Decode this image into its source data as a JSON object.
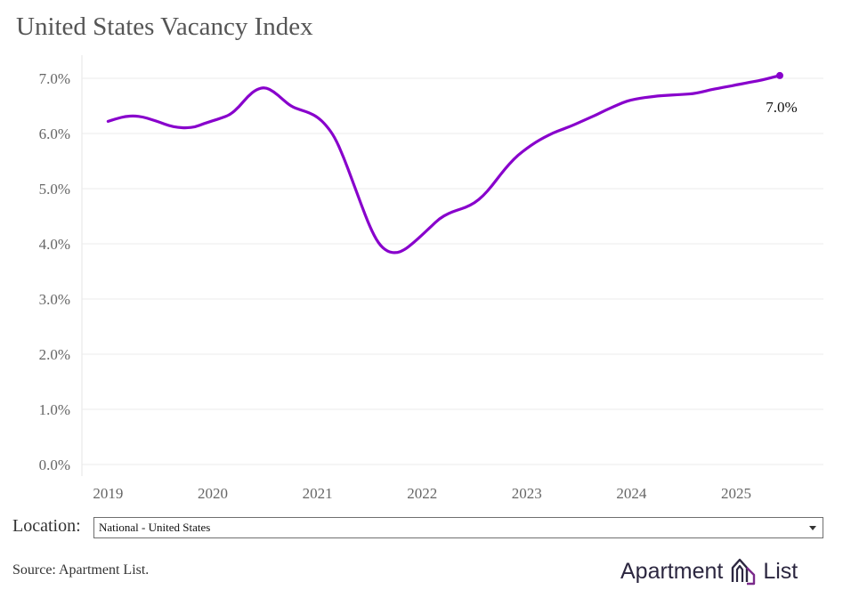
{
  "title": "United States Vacancy Index",
  "location": {
    "label": "Location:",
    "selected": "National - United States"
  },
  "source": "Source: Apartment List.",
  "logo": {
    "word1": "Apartment",
    "word2": "List"
  },
  "colors": {
    "line": "#8800cc",
    "gridline": "#ebebeb",
    "logo_accent": "#7a2a8a"
  },
  "chart_data": {
    "type": "line",
    "title": "United States Vacancy Index",
    "xlabel": "",
    "ylabel": "",
    "x_ticks": [
      "2019",
      "2020",
      "2021",
      "2022",
      "2023",
      "2024",
      "2025"
    ],
    "y_ticks": [
      "0.0%",
      "1.0%",
      "2.0%",
      "3.0%",
      "4.0%",
      "5.0%",
      "6.0%",
      "7.0%"
    ],
    "ylim": [
      0,
      7.0
    ],
    "xlim": [
      "2018-10",
      "2025-11"
    ],
    "grid": true,
    "end_label": "7.0%",
    "series": [
      {
        "x": [
          "2019-01",
          "2019-02",
          "2019-03",
          "2019-04",
          "2019-05",
          "2019-06",
          "2019-07",
          "2019-08",
          "2019-09",
          "2019-10",
          "2019-11",
          "2019-12",
          "2020-01",
          "2020-02",
          "2020-03",
          "2020-04",
          "2020-05",
          "2020-06",
          "2020-07",
          "2020-08",
          "2020-09",
          "2020-10",
          "2020-11",
          "2020-12",
          "2021-01",
          "2021-02",
          "2021-03",
          "2021-04",
          "2021-05",
          "2021-06",
          "2021-07",
          "2021-08",
          "2021-09",
          "2021-10",
          "2021-11",
          "2021-12",
          "2022-01",
          "2022-02",
          "2022-03",
          "2022-04",
          "2022-05",
          "2022-06",
          "2022-07",
          "2022-08",
          "2022-09",
          "2022-10",
          "2022-11",
          "2022-12",
          "2023-01",
          "2023-02",
          "2023-03",
          "2023-04",
          "2023-05",
          "2023-06",
          "2023-07",
          "2023-08",
          "2023-09",
          "2023-10",
          "2023-11",
          "2023-12",
          "2024-01",
          "2024-02",
          "2024-03",
          "2024-04",
          "2024-05",
          "2024-06",
          "2024-07",
          "2024-08",
          "2024-09",
          "2024-10",
          "2024-11",
          "2024-12",
          "2025-01",
          "2025-02",
          "2025-03",
          "2025-04",
          "2025-05",
          "2025-06"
        ],
        "y": [
          6.22,
          6.27,
          6.31,
          6.32,
          6.3,
          6.25,
          6.2,
          6.14,
          6.11,
          6.1,
          6.12,
          6.18,
          6.23,
          6.28,
          6.34,
          6.48,
          6.67,
          6.8,
          6.84,
          6.76,
          6.62,
          6.49,
          6.43,
          6.38,
          6.3,
          6.15,
          5.93,
          5.57,
          5.15,
          4.72,
          4.31,
          4.0,
          3.86,
          3.83,
          3.89,
          4.02,
          4.16,
          4.31,
          4.46,
          4.55,
          4.61,
          4.66,
          4.74,
          4.87,
          5.05,
          5.26,
          5.45,
          5.61,
          5.73,
          5.84,
          5.93,
          6.01,
          6.07,
          6.13,
          6.2,
          6.27,
          6.34,
          6.42,
          6.49,
          6.56,
          6.61,
          6.64,
          6.66,
          6.68,
          6.69,
          6.7,
          6.71,
          6.72,
          6.75,
          6.79,
          6.82,
          6.85,
          6.88,
          6.91,
          6.94,
          6.97,
          7.01,
          7.05
        ]
      }
    ]
  }
}
